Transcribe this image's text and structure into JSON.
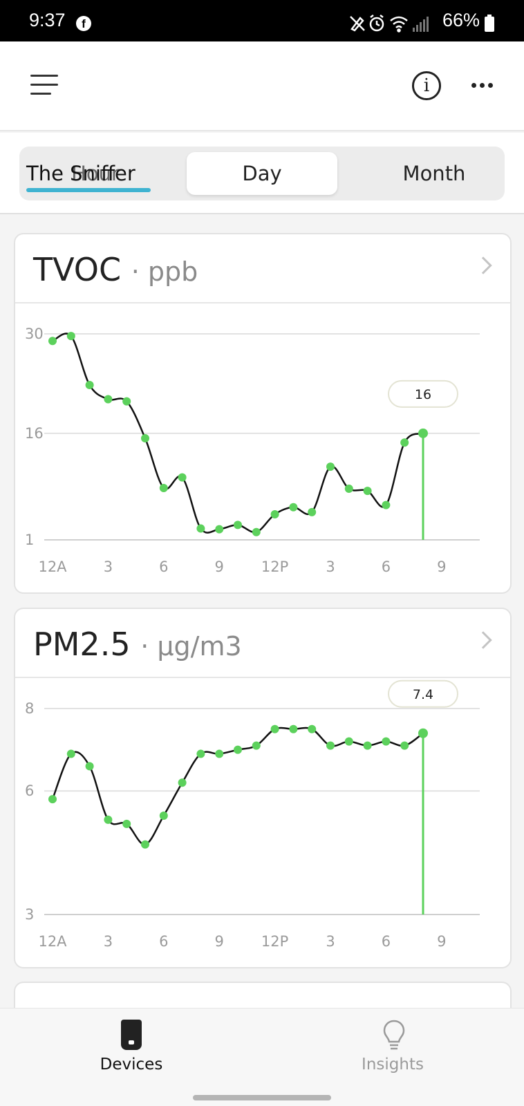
{
  "status_bar": {
    "time": "9:37",
    "battery": "66%"
  },
  "tabs": {
    "title": "The Sniffer",
    "hour": "Hour",
    "day": "Day",
    "month": "Month"
  },
  "tvoc": {
    "name": "TVOC",
    "unit": "· ppb",
    "tooltip": "16",
    "chart_data": {
      "type": "line",
      "title": "TVOC · ppb",
      "x_tick_labels": [
        "12A",
        "3",
        "6",
        "9",
        "12P",
        "3",
        "6",
        "9"
      ],
      "y_tick_labels": [
        "30",
        "16",
        "1"
      ],
      "ylim": [
        1,
        30
      ],
      "x_hours": [
        0,
        1,
        2,
        3,
        4,
        5,
        6,
        7,
        8,
        9,
        10,
        11,
        12,
        13,
        14,
        15,
        16,
        17,
        18,
        19,
        20
      ],
      "values": [
        29,
        29.7,
        22.8,
        20.8,
        20.5,
        15.3,
        8.3,
        9.8,
        2.6,
        2.5,
        3.1,
        2.1,
        4.6,
        5.6,
        4.9,
        11.3,
        8.2,
        7.9,
        5.9,
        14.7,
        16
      ],
      "highlight_index": 20,
      "grid": true
    }
  },
  "pm25": {
    "name": "PM2.5",
    "unit": "· µg/m3",
    "tooltip": "7.4",
    "chart_data": {
      "type": "line",
      "title": "PM2.5 · µg/m3",
      "x_tick_labels": [
        "12A",
        "3",
        "6",
        "9",
        "12P",
        "3",
        "6",
        "9"
      ],
      "y_tick_labels": [
        "8",
        "6",
        "3"
      ],
      "ylim": [
        3,
        8
      ],
      "x_hours": [
        0,
        1,
        2,
        3,
        4,
        5,
        6,
        7,
        8,
        9,
        10,
        11,
        12,
        13,
        14,
        15,
        16,
        17,
        18,
        19,
        20
      ],
      "values": [
        5.8,
        6.9,
        6.6,
        5.3,
        5.2,
        4.7,
        5.4,
        6.2,
        6.9,
        6.9,
        7.0,
        7.1,
        7.5,
        7.5,
        7.5,
        7.1,
        7.2,
        7.1,
        7.2,
        7.1,
        7.4
      ],
      "highlight_index": 20,
      "grid": true
    }
  },
  "nav": {
    "devices": "Devices",
    "insights": "Insights"
  },
  "colors": {
    "accent": "#3fb3d1",
    "point": "#5cd15c",
    "line": "#111111"
  }
}
